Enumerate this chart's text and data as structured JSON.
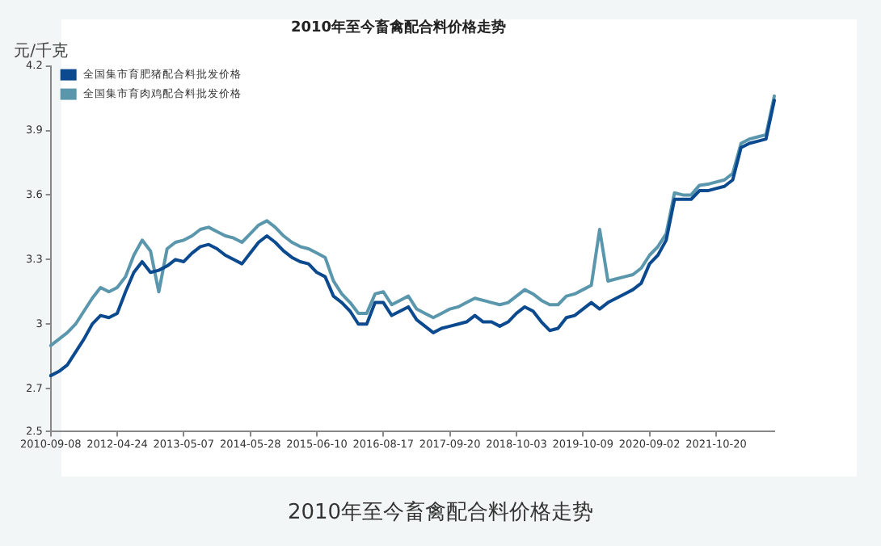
{
  "chart_data": {
    "type": "line",
    "title": "2010年至今畜禽配合料价格走势",
    "ylabel": "元/千克",
    "annotations": [
      "2010年至今畜禽配合料价格走势"
    ],
    "categories": [
      "2010-09-08",
      null,
      null,
      null,
      null,
      null,
      null,
      null,
      "2012-04-24",
      null,
      null,
      null,
      null,
      null,
      null,
      null,
      "2013-05-07",
      null,
      null,
      null,
      null,
      null,
      null,
      null,
      "2014-05-28",
      null,
      null,
      null,
      null,
      null,
      null,
      null,
      "2015-06-10",
      null,
      null,
      null,
      null,
      null,
      null,
      null,
      "2016-08-17",
      null,
      null,
      null,
      null,
      null,
      null,
      null,
      "2017-09-20",
      null,
      null,
      null,
      null,
      null,
      null,
      null,
      "2018-10-03",
      null,
      null,
      null,
      null,
      null,
      null,
      null,
      "2019-10-09",
      null,
      null,
      null,
      null,
      null,
      null,
      null,
      "2020-09-02",
      null,
      null,
      null,
      null,
      null,
      null,
      null,
      "2021-10-20",
      null,
      null,
      null,
      null,
      null,
      null,
      null
    ],
    "series": [
      {
        "name": "全国集市育肥猪配合料批发价格",
        "color": "#0b4a8f",
        "values": [
          2.76,
          2.78,
          2.81,
          2.87,
          2.93,
          3.0,
          3.04,
          3.03,
          3.05,
          3.15,
          3.24,
          3.29,
          3.24,
          3.25,
          3.27,
          3.3,
          3.29,
          3.33,
          3.36,
          3.37,
          3.35,
          3.32,
          3.3,
          3.28,
          3.33,
          3.38,
          3.41,
          3.38,
          3.34,
          3.31,
          3.29,
          3.28,
          3.24,
          3.22,
          3.13,
          3.1,
          3.06,
          3.0,
          3.0,
          3.1,
          3.1,
          3.04,
          3.06,
          3.08,
          3.02,
          2.99,
          2.96,
          2.98,
          2.99,
          3.0,
          3.01,
          3.04,
          3.01,
          3.01,
          2.99,
          3.01,
          3.05,
          3.08,
          3.06,
          3.01,
          2.97,
          2.98,
          3.03,
          3.04,
          3.07,
          3.1,
          3.07,
          3.1,
          3.12,
          3.14,
          3.16,
          3.19,
          3.28,
          3.32,
          3.39,
          3.58,
          3.58,
          3.58,
          3.62,
          3.62,
          3.63,
          3.64,
          3.67,
          3.82,
          3.84,
          3.85,
          3.86,
          4.04
        ]
      },
      {
        "name": "全国集市育肉鸡配合料批发价格",
        "color": "#5a97ad",
        "values": [
          2.9,
          2.93,
          2.96,
          3.0,
          3.06,
          3.12,
          3.17,
          3.15,
          3.17,
          3.22,
          3.32,
          3.39,
          3.34,
          3.15,
          3.35,
          3.38,
          3.39,
          3.41,
          3.44,
          3.45,
          3.43,
          3.41,
          3.4,
          3.38,
          3.42,
          3.46,
          3.48,
          3.45,
          3.41,
          3.38,
          3.36,
          3.35,
          3.33,
          3.31,
          3.2,
          3.14,
          3.1,
          3.05,
          3.05,
          3.14,
          3.15,
          3.09,
          3.11,
          3.13,
          3.07,
          3.05,
          3.03,
          3.05,
          3.07,
          3.08,
          3.1,
          3.12,
          3.11,
          3.1,
          3.09,
          3.1,
          3.13,
          3.16,
          3.14,
          3.11,
          3.09,
          3.09,
          3.13,
          3.14,
          3.16,
          3.18,
          3.44,
          3.2,
          3.21,
          3.22,
          3.23,
          3.26,
          3.32,
          3.36,
          3.42,
          3.61,
          3.6,
          3.6,
          3.645,
          3.65,
          3.66,
          3.67,
          3.7,
          3.84,
          3.86,
          3.87,
          3.88,
          4.06
        ]
      }
    ],
    "ylim": [
      2.5,
      4.2
    ],
    "yticks": [
      2.5,
      2.7,
      3,
      3.3,
      3.6,
      3.9,
      4.2
    ],
    "legend": "top left",
    "marker": "none",
    "line_style": "solid"
  }
}
